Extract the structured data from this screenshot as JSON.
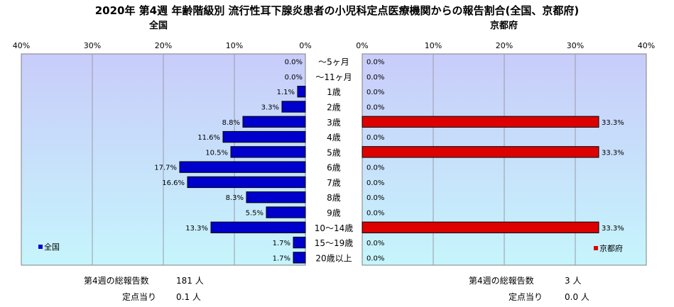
{
  "title": "2020年 第4週 年齢階級別 流行性耳下腺炎患者の小児科定点医療機関からの報告割合(全国、京都府)",
  "chart_data": [
    {
      "type": "bar",
      "panel": "全国",
      "orientation": "horizontal",
      "direction": "right-to-left",
      "categories": [
        "～5ヶ月",
        "～11ヶ月",
        "1歳",
        "2歳",
        "3歳",
        "4歳",
        "5歳",
        "6歳",
        "7歳",
        "8歳",
        "9歳",
        "10～14歳",
        "15～19歳",
        "20歳以上"
      ],
      "series": [
        {
          "name": "全国",
          "color": "#0000cc",
          "values": [
            0.0,
            0.0,
            1.1,
            3.3,
            8.8,
            11.6,
            10.5,
            17.7,
            16.6,
            8.3,
            5.5,
            13.3,
            1.7,
            1.7
          ],
          "labels": [
            "0.0%",
            "0.0%",
            "1.1%",
            "3.3%",
            "8.8%",
            "11.6%",
            "10.5%",
            "17.7%",
            "16.6%",
            "8.3%",
            "5.5%",
            "13.3%",
            "1.7%",
            "1.7%"
          ]
        }
      ],
      "xlim": [
        0,
        40
      ],
      "ticks": [
        "40%",
        "30%",
        "20%",
        "10%",
        "0%"
      ],
      "legend": "bottom-left",
      "grid": true
    },
    {
      "type": "bar",
      "panel": "京都府",
      "orientation": "horizontal",
      "direction": "left-to-right",
      "categories": [
        "～5ヶ月",
        "～11ヶ月",
        "1歳",
        "2歳",
        "3歳",
        "4歳",
        "5歳",
        "6歳",
        "7歳",
        "8歳",
        "9歳",
        "10～14歳",
        "15～19歳",
        "20歳以上"
      ],
      "series": [
        {
          "name": "京都府",
          "color": "#dd0000",
          "values": [
            0.0,
            0.0,
            0.0,
            0.0,
            33.3,
            0.0,
            33.3,
            0.0,
            0.0,
            0.0,
            0.0,
            33.3,
            0.0,
            0.0
          ],
          "labels": [
            "0.0%",
            "0.0%",
            "0.0%",
            "0.0%",
            "33.3%",
            "0.0%",
            "33.3%",
            "0.0%",
            "0.0%",
            "0.0%",
            "0.0%",
            "33.3%",
            "0.0%",
            "0.0%"
          ]
        }
      ],
      "xlim": [
        0,
        40
      ],
      "ticks": [
        "0%",
        "10%",
        "20%",
        "30%",
        "40%"
      ],
      "legend": "bottom-right",
      "grid": true
    }
  ],
  "colors": {
    "plot_bg": "#c8ccfa",
    "plot_bg_bottom": "#c6f5fc",
    "grid": "#9a9aa8"
  },
  "summary": {
    "national": {
      "total_label": "第4週の総報告数",
      "total_value": "181 人",
      "per_label": "定点当り",
      "per_value": "0.1 人"
    },
    "kyoto": {
      "total_label": "第4週の総報告数",
      "total_value": "3 人",
      "per_label": "定点当り",
      "per_value": "0.0 人"
    }
  }
}
